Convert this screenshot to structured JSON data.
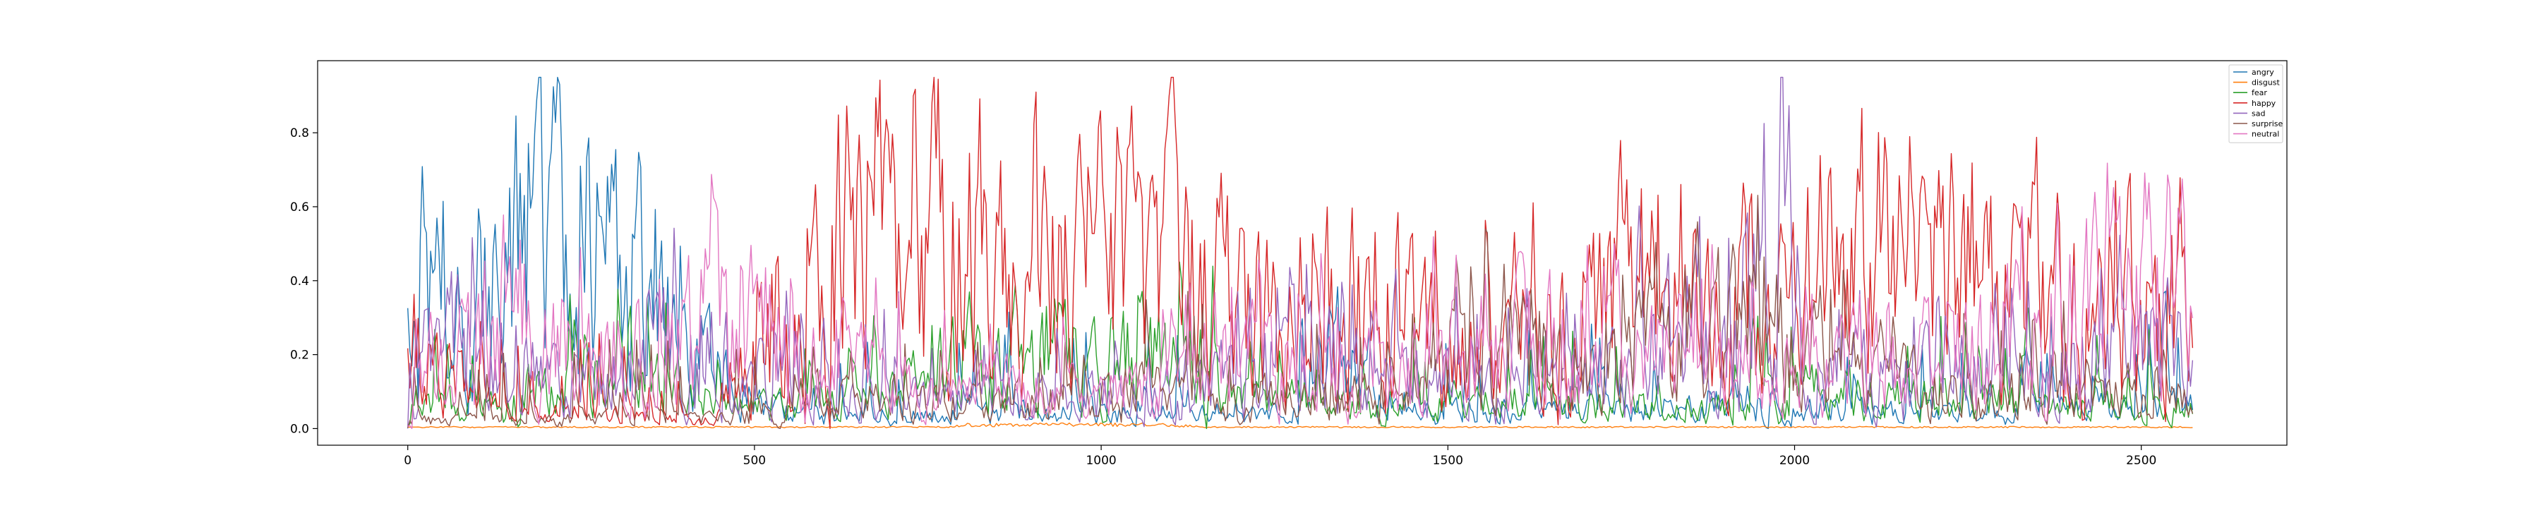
{
  "chart_data": {
    "type": "line",
    "title": "",
    "xlabel": "",
    "ylabel": "",
    "xlim": [
      -130,
      2710
    ],
    "ylim": [
      -0.045,
      0.995
    ],
    "x_range": [
      0,
      2575
    ],
    "xticks": [
      {
        "value": 0,
        "label": "0"
      },
      {
        "value": 500,
        "label": "500"
      },
      {
        "value": 1000,
        "label": "1000"
      },
      {
        "value": 1500,
        "label": "1500"
      },
      {
        "value": 2000,
        "label": "2000"
      },
      {
        "value": 2500,
        "label": "2500"
      }
    ],
    "yticks": [
      {
        "value": 0.0,
        "label": "0.0"
      },
      {
        "value": 0.2,
        "label": "0.2"
      },
      {
        "value": 0.4,
        "label": "0.4"
      },
      {
        "value": 0.6,
        "label": "0.6"
      },
      {
        "value": 0.8,
        "label": "0.8"
      }
    ],
    "grid": false,
    "legend_position": "top-right",
    "series": [
      {
        "name": "angry",
        "color": "#1f77b4",
        "profile": [
          [
            0,
            0.35
          ],
          [
            60,
            0.3
          ],
          [
            100,
            0.25
          ],
          [
            130,
            0.4
          ],
          [
            160,
            0.5
          ],
          [
            220,
            0.55
          ],
          [
            300,
            0.42
          ],
          [
            400,
            0.38
          ],
          [
            440,
            0.15
          ],
          [
            480,
            0.08
          ],
          [
            600,
            0.04
          ],
          [
            1300,
            0.04
          ],
          [
            1350,
            0.2
          ],
          [
            1400,
            0.04
          ],
          [
            1800,
            0.05
          ],
          [
            1900,
            0.08
          ],
          [
            2000,
            0.06
          ],
          [
            2200,
            0.04
          ],
          [
            2575,
            0.06
          ]
        ]
      },
      {
        "name": "disgust",
        "color": "#ff7f0e",
        "profile": [
          [
            0,
            0.004
          ],
          [
            780,
            0.004
          ],
          [
            800,
            0.01
          ],
          [
            1100,
            0.01
          ],
          [
            1150,
            0.004
          ],
          [
            2575,
            0.004
          ]
        ]
      },
      {
        "name": "fear",
        "color": "#2ca02c",
        "profile": [
          [
            0,
            0.05
          ],
          [
            130,
            0.06
          ],
          [
            150,
            0.1
          ],
          [
            420,
            0.12
          ],
          [
            440,
            0.06
          ],
          [
            500,
            0.06
          ],
          [
            700,
            0.1
          ],
          [
            780,
            0.18
          ],
          [
            1150,
            0.2
          ],
          [
            1200,
            0.08
          ],
          [
            1950,
            0.06
          ],
          [
            2000,
            0.1
          ],
          [
            2200,
            0.08
          ],
          [
            2575,
            0.05
          ]
        ]
      },
      {
        "name": "happy",
        "color": "#d62728",
        "profile": [
          [
            0,
            0.25
          ],
          [
            50,
            0.15
          ],
          [
            130,
            0.05
          ],
          [
            440,
            0.02
          ],
          [
            480,
            0.2
          ],
          [
            600,
            0.4
          ],
          [
            700,
            0.55
          ],
          [
            1100,
            0.5
          ],
          [
            1150,
            0.35
          ],
          [
            1200,
            0.5
          ],
          [
            1250,
            0.3
          ],
          [
            1300,
            0.35
          ],
          [
            1450,
            0.3
          ],
          [
            1550,
            0.25
          ],
          [
            1800,
            0.35
          ],
          [
            1950,
            0.3
          ],
          [
            2100,
            0.45
          ],
          [
            2400,
            0.4
          ],
          [
            2575,
            0.35
          ]
        ]
      },
      {
        "name": "sad",
        "color": "#9467bd",
        "profile": [
          [
            0,
            0.2
          ],
          [
            100,
            0.25
          ],
          [
            200,
            0.15
          ],
          [
            300,
            0.12
          ],
          [
            400,
            0.25
          ],
          [
            500,
            0.15
          ],
          [
            600,
            0.1
          ],
          [
            800,
            0.08
          ],
          [
            1100,
            0.1
          ],
          [
            1250,
            0.18
          ],
          [
            1300,
            0.25
          ],
          [
            1400,
            0.12
          ],
          [
            1600,
            0.1
          ],
          [
            1700,
            0.12
          ],
          [
            1850,
            0.3
          ],
          [
            1900,
            0.55
          ],
          [
            1990,
            0.6
          ],
          [
            2020,
            0.15
          ],
          [
            2200,
            0.15
          ],
          [
            2400,
            0.18
          ],
          [
            2575,
            0.22
          ]
        ]
      },
      {
        "name": "surprise",
        "color": "#8c564b",
        "profile": [
          [
            0,
            0.02
          ],
          [
            450,
            0.03
          ],
          [
            500,
            0.08
          ],
          [
            900,
            0.08
          ],
          [
            1100,
            0.1
          ],
          [
            1400,
            0.08
          ],
          [
            1500,
            0.15
          ],
          [
            1550,
            0.28
          ],
          [
            1700,
            0.2
          ],
          [
            1850,
            0.25
          ],
          [
            1950,
            0.3
          ],
          [
            2000,
            0.2
          ],
          [
            2200,
            0.1
          ],
          [
            2575,
            0.08
          ]
        ]
      },
      {
        "name": "neutral",
        "color": "#e377c2",
        "profile": [
          [
            0,
            0.15
          ],
          [
            150,
            0.25
          ],
          [
            300,
            0.22
          ],
          [
            420,
            0.3
          ],
          [
            460,
            0.35
          ],
          [
            520,
            0.25
          ],
          [
            700,
            0.12
          ],
          [
            1000,
            0.1
          ],
          [
            1250,
            0.2
          ],
          [
            1400,
            0.15
          ],
          [
            1600,
            0.25
          ],
          [
            1800,
            0.2
          ],
          [
            2000,
            0.15
          ],
          [
            2300,
            0.25
          ],
          [
            2450,
            0.35
          ],
          [
            2575,
            0.35
          ]
        ]
      }
    ]
  }
}
